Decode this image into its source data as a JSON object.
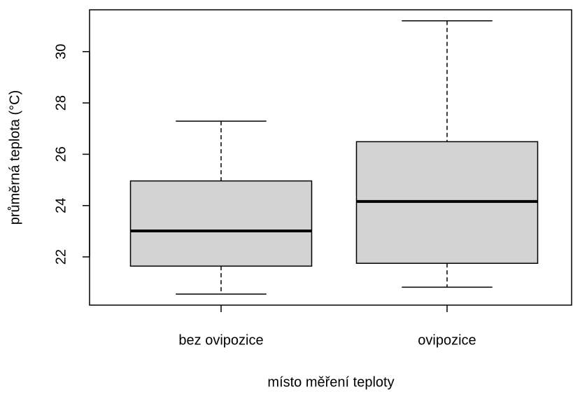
{
  "chart_data": {
    "type": "box",
    "xlabel": "místo měření teploty",
    "ylabel": "průměrná teplota (°C)",
    "categories": [
      "bez ovipozice",
      "ovipozice"
    ],
    "min": [
      20.55,
      20.82
    ],
    "q1": [
      21.64,
      21.75
    ],
    "median": [
      23.01,
      24.16
    ],
    "q3": [
      24.96,
      26.49
    ],
    "max": [
      27.29,
      31.2
    ],
    "color": "#d3d3d3",
    "ylim": [
      20.12,
      31.63
    ],
    "yticks": [
      22,
      24,
      26,
      28,
      30
    ]
  }
}
